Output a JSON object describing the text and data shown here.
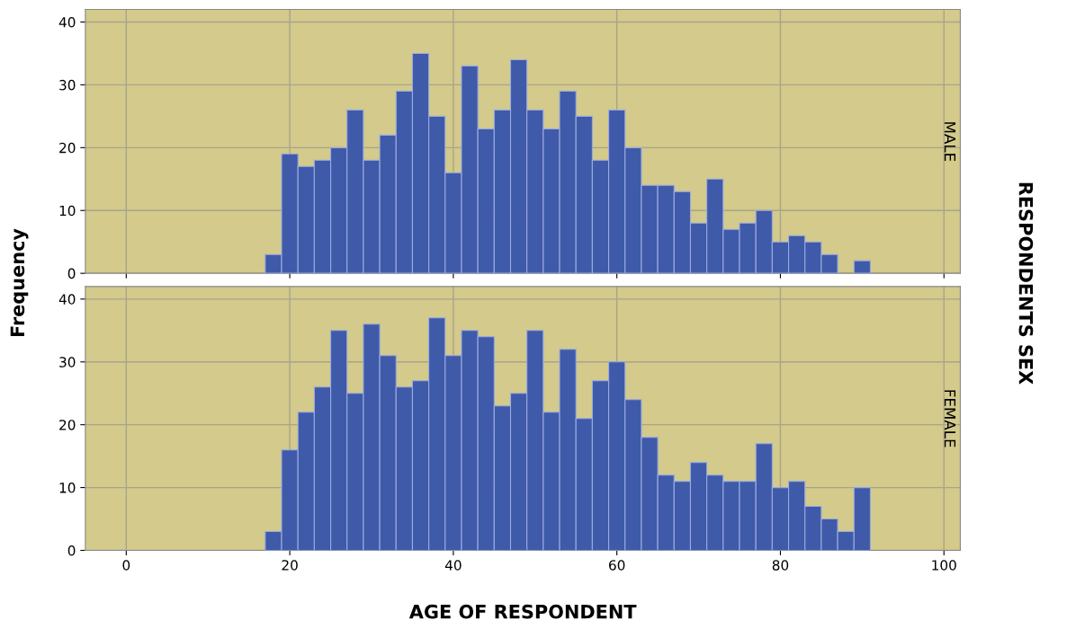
{
  "chart_data": [
    {
      "type": "histogram",
      "title": "MALE",
      "ylabel": "Frequency",
      "annotations": [
        "RESPONDENTS SEX"
      ],
      "color": "#3f5aa8",
      "bins": [
        17,
        19,
        21,
        23,
        25,
        27,
        29,
        31,
        33,
        35,
        37,
        39,
        41,
        43,
        45,
        47,
        49,
        51,
        53,
        55,
        57,
        59,
        61,
        63,
        65,
        67,
        69,
        71,
        73,
        75,
        77,
        79,
        81,
        83,
        85,
        87,
        89,
        91
      ],
      "values": [
        3,
        19,
        17,
        18,
        20,
        26,
        18,
        22,
        29,
        35,
        25,
        16,
        33,
        23,
        26,
        34,
        26,
        23,
        29,
        25,
        18,
        26,
        20,
        14,
        14,
        13,
        8,
        15,
        7,
        8,
        10,
        5,
        6,
        5,
        3,
        0,
        2
      ],
      "xlim": [
        -5,
        102
      ],
      "xticks": [
        0,
        20,
        40,
        60,
        80,
        100
      ],
      "ylim": [
        0,
        42
      ],
      "yticks": [
        0,
        10,
        20,
        30,
        40
      ],
      "grid": true,
      "tick_labels": "y"
    },
    {
      "type": "histogram",
      "title": "FEMALE",
      "xlabel": "AGE OF RESPONDENT",
      "color": "#3f5aa8",
      "bins": [
        17,
        19,
        21,
        23,
        25,
        27,
        29,
        31,
        33,
        35,
        37,
        39,
        41,
        43,
        45,
        47,
        49,
        51,
        53,
        55,
        57,
        59,
        61,
        63,
        65,
        67,
        69,
        71,
        73,
        75,
        77,
        79,
        81,
        83,
        85,
        87,
        89,
        91
      ],
      "values": [
        3,
        16,
        22,
        26,
        35,
        25,
        36,
        31,
        26,
        27,
        37,
        31,
        35,
        34,
        23,
        25,
        35,
        22,
        32,
        21,
        27,
        30,
        24,
        18,
        12,
        11,
        14,
        12,
        11,
        11,
        17,
        10,
        11,
        7,
        5,
        3,
        10
      ],
      "xlim": [
        -5,
        102
      ],
      "xticks": [
        0,
        20,
        40,
        60,
        80,
        100
      ],
      "ylim": [
        0,
        42
      ],
      "yticks": [
        0,
        10,
        20,
        30,
        40
      ],
      "grid": true
    }
  ]
}
